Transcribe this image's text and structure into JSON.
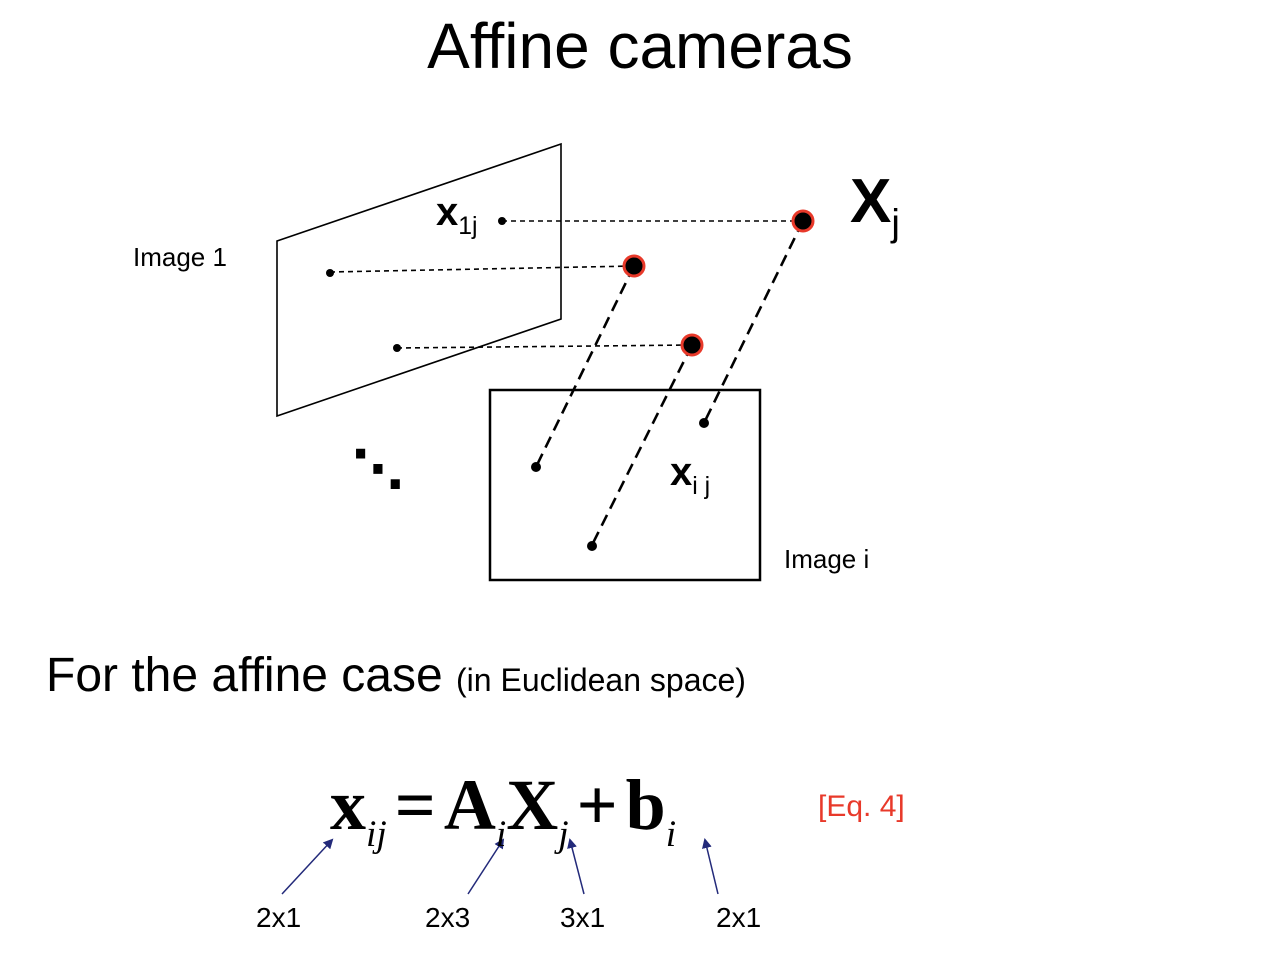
{
  "title": "Affine cameras",
  "diagram": {
    "image1_label": "Image 1",
    "imagei_label": "Image i",
    "x1j": {
      "base": "x",
      "sub": "1j"
    },
    "xij": {
      "base": "x",
      "sub": "i j"
    },
    "Xj": {
      "base": "X",
      "sub": "j"
    },
    "ellipsis": "⋱"
  },
  "heading": {
    "main": "For the affine case ",
    "aside": "(in Euclidean space)"
  },
  "equation": {
    "x": "x",
    "x_sub": "ij",
    "eq": "=",
    "A": "A",
    "A_sub": "i",
    "X": "X",
    "X_sub": "j",
    "plus": "+",
    "b": "b",
    "b_sub": "i",
    "ref": "[Eq. 4]"
  },
  "dimensions": {
    "x": "2x1",
    "A": "2x3",
    "X": "3x1",
    "b": "2x1"
  },
  "colors": {
    "accent": "#e8392a",
    "arrow": "#232a7a"
  }
}
